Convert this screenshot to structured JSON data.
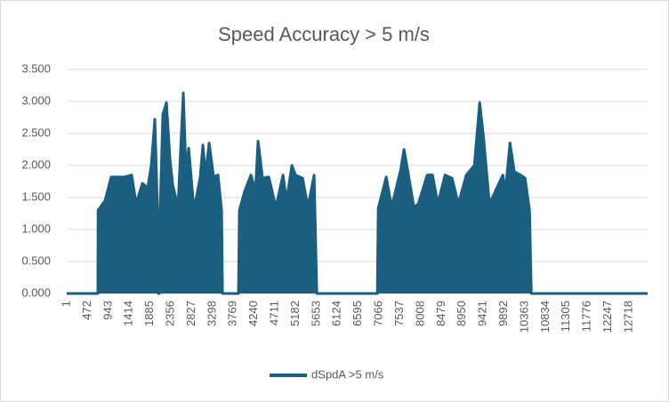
{
  "chart_data": {
    "type": "line",
    "title": "Speed Accuracy > 5 m/s",
    "x": [
      1,
      706,
      710,
      867,
      1007,
      1108,
      1309,
      1470,
      1571,
      1712,
      1833,
      1913,
      1994,
      2054,
      2075,
      2095,
      2115,
      2175,
      2256,
      2336,
      2397,
      2517,
      2638,
      2698,
      2759,
      2880,
      2960,
      3021,
      3081,
      3141,
      3222,
      3323,
      3423,
      3504,
      3524,
      3886,
      3906,
      4027,
      4168,
      4269,
      4329,
      4430,
      4571,
      4732,
      4893,
      4973,
      5094,
      5175,
      5336,
      5456,
      5597,
      5657,
      7026,
      7047,
      7228,
      7348,
      7550,
      7630,
      7731,
      7852,
      7952,
      8154,
      8274,
      8395,
      8556,
      8717,
      8858,
      9039,
      9220,
      9341,
      9422,
      9563,
      9865,
      9925,
      10026,
      10126,
      10267,
      10368,
      10469,
      10509,
      13140
    ],
    "series": [
      {
        "name": "dSpdA >5 m/s",
        "color": "#1a5e80",
        "values": [
          0,
          0,
          1.3,
          1.45,
          1.82,
          1.82,
          1.82,
          1.85,
          1.4,
          1.72,
          1.65,
          2.0,
          2.72,
          1.3,
          0,
          0,
          1.33,
          2.8,
          2.98,
          2.1,
          1.7,
          1.35,
          3.13,
          1.9,
          2.27,
          1.3,
          1.6,
          1.82,
          2.32,
          1.85,
          2.35,
          1.82,
          1.85,
          1.3,
          0,
          0,
          1.3,
          1.6,
          1.85,
          1.6,
          2.38,
          1.8,
          1.82,
          1.35,
          1.85,
          1.45,
          2.0,
          1.85,
          1.8,
          1.35,
          1.85,
          0,
          0,
          1.33,
          1.82,
          1.35,
          1.92,
          2.25,
          1.85,
          1.35,
          1.4,
          1.85,
          1.85,
          1.4,
          1.85,
          1.8,
          1.4,
          1.85,
          2.0,
          2.98,
          2.48,
          1.4,
          1.85,
          1.6,
          2.35,
          1.9,
          1.85,
          1.8,
          1.3,
          0,
          0
        ]
      }
    ],
    "xlim": [
      1,
      13140
    ],
    "xticks": [
      1,
      472,
      943,
      1414,
      1885,
      2356,
      2827,
      3298,
      3769,
      4240,
      4711,
      5182,
      5653,
      6124,
      6595,
      7066,
      7537,
      8008,
      8479,
      8950,
      9421,
      9892,
      10363,
      10834,
      11305,
      11776,
      12247,
      12718
    ],
    "ylim": [
      0,
      3.5
    ],
    "yticks": [
      {
        "value": 0,
        "label": "0.000"
      },
      {
        "value": 0.5,
        "label": "0.500"
      },
      {
        "value": 1,
        "label": "1.000"
      },
      {
        "value": 1.5,
        "label": "1.500"
      },
      {
        "value": 2,
        "label": "2.000"
      },
      {
        "value": 2.5,
        "label": "2.500"
      },
      {
        "value": 3,
        "label": "3.000"
      },
      {
        "value": 3.5,
        "label": "3.500"
      }
    ],
    "grid": true,
    "legend": "bottom"
  }
}
